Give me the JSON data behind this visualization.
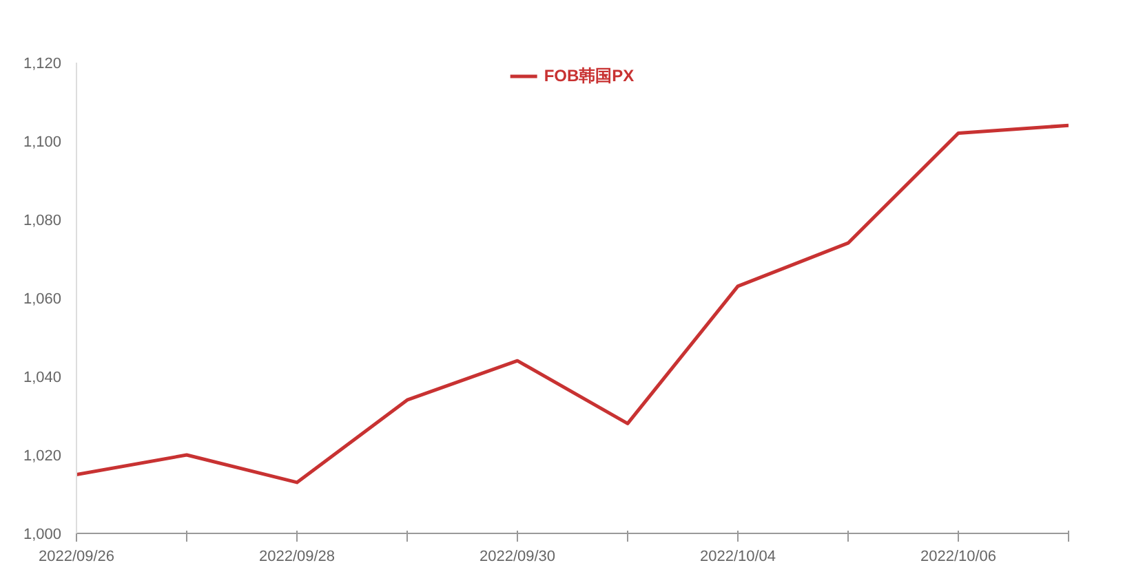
{
  "chart_data": {
    "type": "line",
    "categories": [
      "2022/09/26",
      null,
      "2022/09/28",
      null,
      "2022/09/30",
      null,
      "2022/10/04",
      null,
      "2022/10/06",
      null
    ],
    "series": [
      {
        "name": "FOB韩国PX",
        "color": "#c83232",
        "values": [
          1015,
          1020,
          1013,
          1034,
          1044,
          1028,
          1063,
          1074,
          1102,
          1104
        ]
      }
    ],
    "ylim": [
      1000,
      1120
    ],
    "yticks": [
      {
        "value": 1000,
        "label": "1,000"
      },
      {
        "value": 1020,
        "label": "1,020"
      },
      {
        "value": 1040,
        "label": "1,040"
      },
      {
        "value": 1060,
        "label": "1,060"
      },
      {
        "value": 1080,
        "label": "1,080"
      },
      {
        "value": 1100,
        "label": "1,100"
      },
      {
        "value": 1120,
        "label": "1,120"
      }
    ],
    "grid": false,
    "legend": "top"
  }
}
